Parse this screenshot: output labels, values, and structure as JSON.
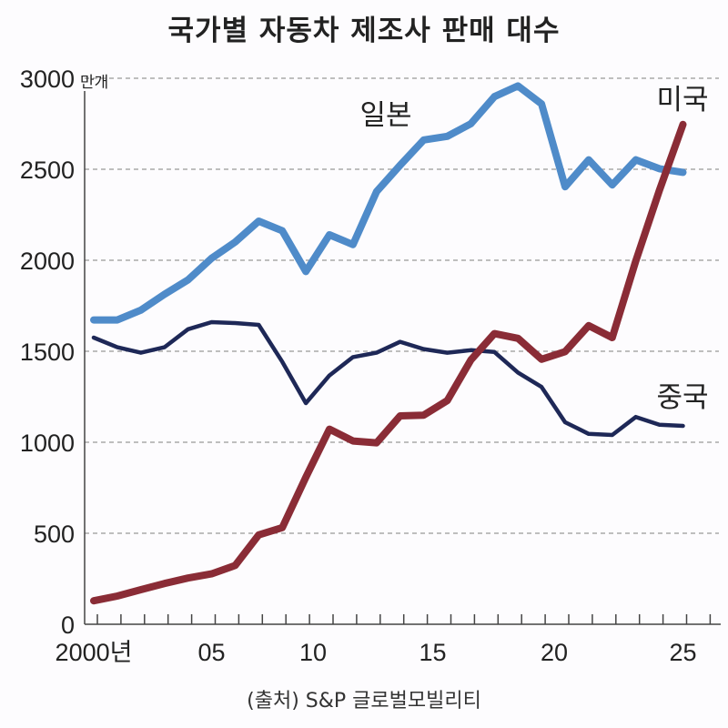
{
  "chart_data": {
    "type": "line",
    "title": "국가별 자동차 제조사 판매 대수",
    "unit": "만개",
    "x": [
      2000,
      2001,
      2002,
      2003,
      2004,
      2005,
      2006,
      2007,
      2008,
      2009,
      2010,
      2011,
      2012,
      2013,
      2014,
      2015,
      2016,
      2017,
      2018,
      2019,
      2020,
      2021,
      2022,
      2023,
      2024,
      2025
    ],
    "xtick_labels": [
      {
        "year": 2000,
        "label": "2000년"
      },
      {
        "year": 2005,
        "label": "05"
      },
      {
        "year": 2010,
        "label": "10"
      },
      {
        "year": 2015,
        "label": "15"
      },
      {
        "year": 2020,
        "label": "20"
      },
      {
        "year": 2025,
        "label": "25"
      }
    ],
    "yticks": [
      0,
      500,
      1000,
      1500,
      2000,
      2500,
      3000
    ],
    "ylim": [
      0,
      3000
    ],
    "xlim": [
      2000,
      2026
    ],
    "grid": "horizontal dashed",
    "series": [
      {
        "name": "일본",
        "color": "#4f8bc9",
        "values": [
          1672,
          1672,
          1726,
          1813,
          1892,
          2011,
          2100,
          2215,
          2162,
          1938,
          2140,
          2086,
          2377,
          2522,
          2661,
          2681,
          2750,
          2899,
          2958,
          2859,
          2404,
          2552,
          2414,
          2552,
          2503,
          2483
        ]
      },
      {
        "name": "미국",
        "color": "#1e2857",
        "values": [
          1575,
          1522,
          1492,
          1522,
          1621,
          1660,
          1655,
          1645,
          1442,
          1215,
          1367,
          1468,
          1492,
          1552,
          1512,
          1492,
          1506,
          1496,
          1383,
          1304,
          1110,
          1046,
          1040,
          1139,
          1096,
          1090
        ]
      },
      {
        "name": "중국",
        "color": "#8a2c36",
        "values": [
          129,
          155,
          190,
          224,
          254,
          277,
          323,
          491,
          531,
          808,
          1072,
          1007,
          997,
          1145,
          1149,
          1229,
          1452,
          1597,
          1571,
          1456,
          1498,
          1641,
          1575,
          1997,
          2384,
          2746
        ]
      }
    ]
  },
  "source": "(출처) S&P 글로벌모빌리티"
}
